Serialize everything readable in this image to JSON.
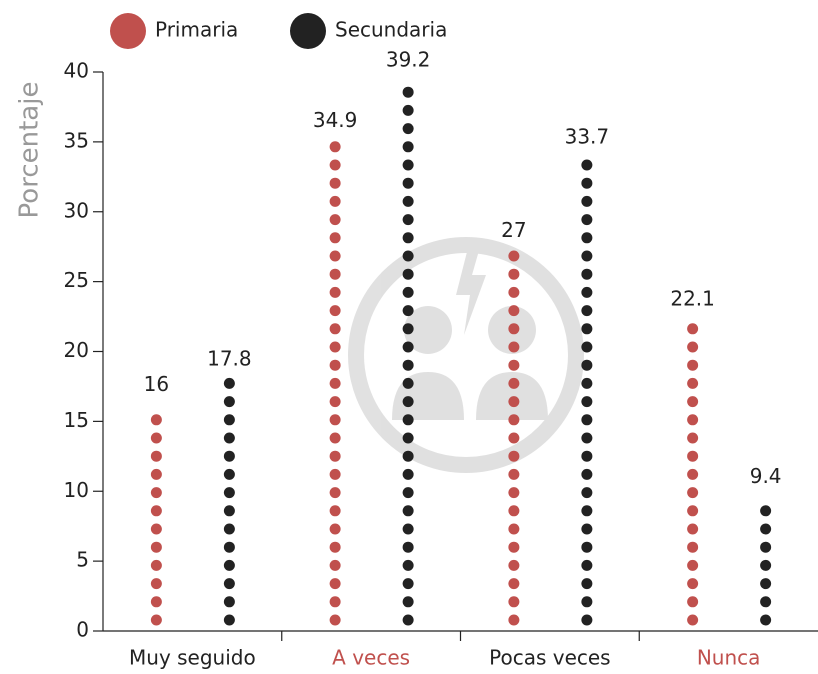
{
  "chart_data": {
    "type": "dot-column",
    "y_label": "Porcentaje",
    "categories": [
      "Muy seguido",
      "A veces",
      "Pocas veces",
      "Nunca"
    ],
    "category_colors": [
      "#222222",
      "#c0504d",
      "#222222",
      "#c0504d"
    ],
    "series": [
      {
        "name": "Primaria",
        "color": "#c0504d",
        "values": [
          16,
          34.9,
          27,
          22.1
        ]
      },
      {
        "name": "Secundaria",
        "color": "#222222",
        "values": [
          17.8,
          39.2,
          33.7,
          9.4
        ]
      }
    ],
    "ylim": [
      0,
      40
    ],
    "yticks": [
      0,
      5,
      10,
      15,
      20,
      25,
      30,
      35,
      40
    ]
  }
}
